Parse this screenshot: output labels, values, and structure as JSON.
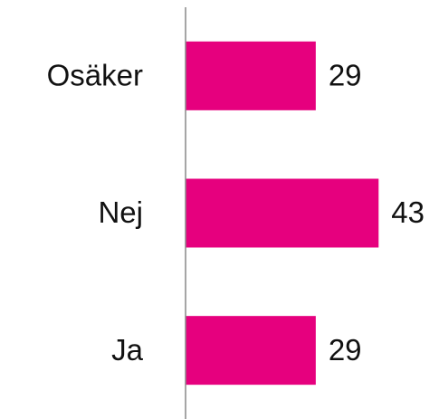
{
  "chart_data": {
    "type": "bar",
    "orientation": "horizontal",
    "categories": [
      "Osäker",
      "Nej",
      "Ja"
    ],
    "values": [
      29,
      43,
      29
    ],
    "color": "#e6007e"
  }
}
